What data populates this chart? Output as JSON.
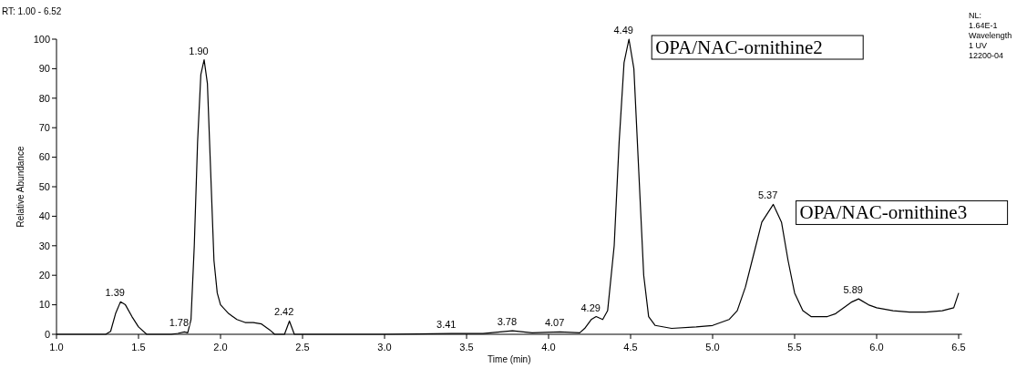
{
  "chart_data": {
    "type": "line",
    "xlabel": "Time (min)",
    "ylabel": "Relative Abundance",
    "xlim": [
      1.0,
      6.52
    ],
    "ylim": [
      0,
      100
    ],
    "xticks": [
      {
        "value": 1,
        "label": "1.0"
      },
      {
        "value": 1.5,
        "label": "1.5"
      },
      {
        "value": 2,
        "label": "2.0"
      },
      {
        "value": 2.5,
        "label": "2.5"
      },
      {
        "value": 3,
        "label": "3.0"
      },
      {
        "value": 3.5,
        "label": "3.5"
      },
      {
        "value": 4,
        "label": "4.0"
      },
      {
        "value": 4.5,
        "label": "4.5"
      },
      {
        "value": 5,
        "label": "5.0"
      },
      {
        "value": 5.5,
        "label": "5.5"
      },
      {
        "value": 6,
        "label": "6.0"
      },
      {
        "value": 6.5,
        "label": "6.5"
      }
    ],
    "yticks": [
      0,
      10,
      20,
      30,
      40,
      50,
      60,
      70,
      80,
      90,
      100
    ],
    "grid": false,
    "marker": "none",
    "line_style": "solid",
    "series": [
      {
        "color": "#000000",
        "x": [
          1.0,
          1.3,
          1.33,
          1.36,
          1.39,
          1.42,
          1.46,
          1.5,
          1.55,
          1.7,
          1.74,
          1.78,
          1.8,
          1.82,
          1.84,
          1.86,
          1.88,
          1.9,
          1.92,
          1.94,
          1.96,
          1.98,
          2.0,
          2.05,
          2.1,
          2.15,
          2.2,
          2.25,
          2.3,
          2.33,
          2.39,
          2.42,
          2.45,
          2.5,
          3.0,
          3.41,
          3.6,
          3.78,
          3.9,
          4.07,
          4.19,
          4.22,
          4.26,
          4.29,
          4.33,
          4.36,
          4.4,
          4.43,
          4.46,
          4.49,
          4.52,
          4.55,
          4.58,
          4.61,
          4.65,
          4.75,
          4.9,
          5.0,
          5.1,
          5.15,
          5.2,
          5.25,
          5.3,
          5.37,
          5.42,
          5.46,
          5.5,
          5.55,
          5.6,
          5.7,
          5.75,
          5.8,
          5.85,
          5.89,
          5.95,
          6.0,
          6.1,
          6.2,
          6.3,
          6.4,
          6.47,
          6.5
        ],
        "values": [
          0,
          0,
          1,
          7,
          11,
          10,
          6,
          2.5,
          0,
          0,
          0.3,
          0.8,
          0.5,
          5,
          30,
          65,
          88,
          93,
          85,
          55,
          25,
          14,
          10,
          7,
          5,
          4,
          4,
          3.5,
          1.5,
          0,
          0,
          4.5,
          0,
          0,
          0,
          0.3,
          0.3,
          1.2,
          0.5,
          0.8,
          0.5,
          2,
          5,
          6,
          5,
          8,
          30,
          65,
          92,
          100,
          90,
          55,
          20,
          6,
          3,
          2,
          2.5,
          3,
          5,
          8,
          16,
          27,
          38,
          44,
          38,
          25,
          14,
          8,
          6,
          6,
          7,
          9,
          11,
          12,
          10,
          9,
          8,
          7.5,
          7.5,
          8,
          9,
          14
        ]
      }
    ],
    "annotations": [
      "RT: 1.00 - 6.52",
      "NL:",
      "1.64E-1",
      "Wavelength",
      "1 UV",
      "12200-04",
      {
        "text": "1.39",
        "x": 1.39,
        "y": 11
      },
      {
        "text": "1.78",
        "x": 1.78,
        "y": 0.8
      },
      {
        "text": "1.90",
        "x": 1.9,
        "y": 93
      },
      {
        "text": "2.42",
        "x": 2.42,
        "y": 4.5
      },
      {
        "text": "3.41",
        "x": 3.41,
        "y": 0.3
      },
      {
        "text": "3.78",
        "x": 3.78,
        "y": 1.2
      },
      {
        "text": "4.07",
        "x": 4.07,
        "y": 0.8
      },
      {
        "text": "4.29",
        "x": 4.29,
        "y": 6
      },
      {
        "text": "4.49",
        "x": 4.49,
        "y": 100
      },
      {
        "text": "5.37",
        "x": 5.37,
        "y": 44
      },
      {
        "text": "5.89",
        "x": 5.89,
        "y": 12
      },
      {
        "text": "OPA/NAC-ornithine2",
        "x": 4.49,
        "y": 100
      },
      {
        "text": "OPA/NAC-ornithine3",
        "x": 5.37,
        "y": 44
      }
    ]
  }
}
